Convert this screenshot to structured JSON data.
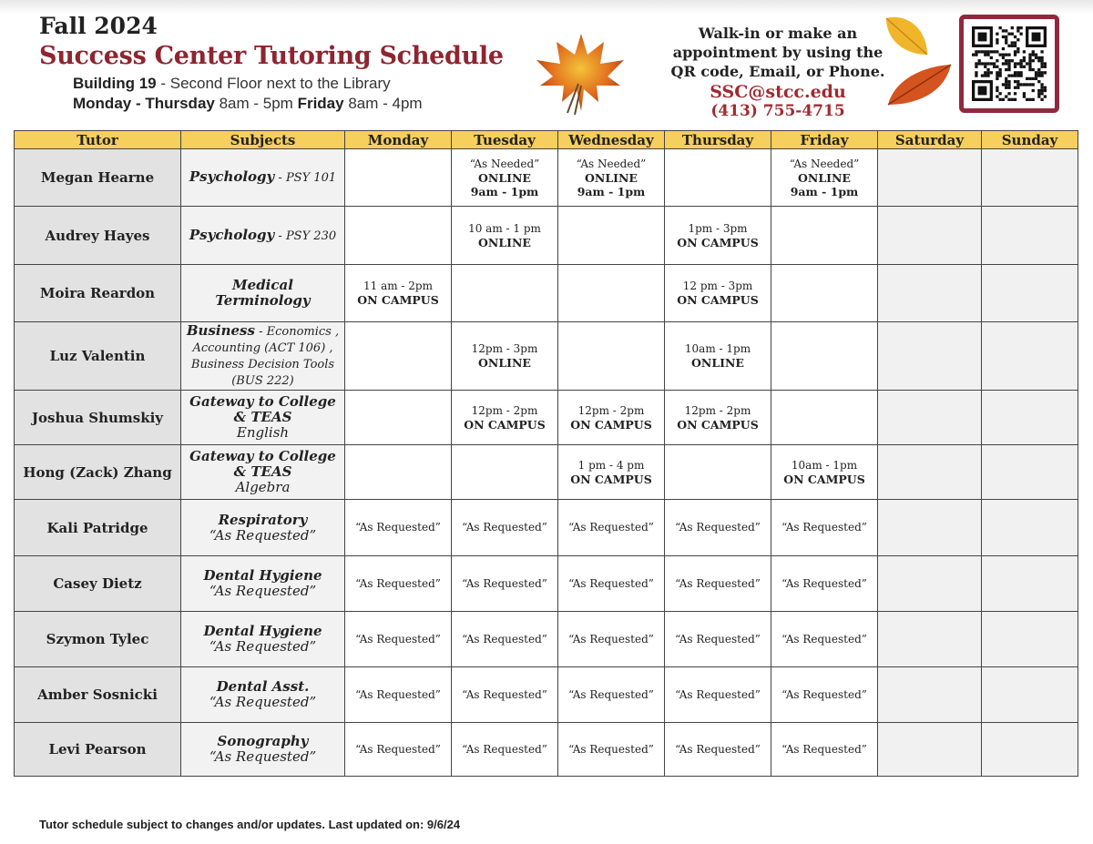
{
  "header": {
    "term": "Fall 2024",
    "title": "Success Center Tutoring Schedule",
    "location_bold": "Building 19",
    "location_rest": " - Second Floor next to the Library",
    "hours_weekday_bold": "Monday - Thursday",
    "hours_weekday": " 8am - 5pm ",
    "hours_friday_bold": "Friday",
    "hours_friday": " 8am - 4pm"
  },
  "contact": {
    "line1": "Walk-in or make an",
    "line2": "appointment by using the",
    "line3": "QR code, Email, or Phone.",
    "email": "SSC@stcc.edu",
    "phone": "(413) 755-4715"
  },
  "colors": {
    "title": "#8e2530",
    "header_row": "#f7cf5c",
    "qr_frame": "#8f2a3d"
  },
  "table": {
    "columns": [
      "Tutor",
      "Subjects",
      "Monday",
      "Tuesday",
      "Wednesday",
      "Thursday",
      "Friday",
      "Saturday",
      "Sunday"
    ],
    "rows": [
      {
        "tutor": "Megan Hearne",
        "subject": {
          "main": "Psychology",
          "detail": " - PSY 101",
          "inline": true
        },
        "days": [
          null,
          {
            "note": "“As Needed”",
            "mode": "ONLINE",
            "time": "9am - 1pm"
          },
          {
            "note": "“As Needed”",
            "mode": "ONLINE",
            "time": "9am - 1pm"
          },
          null,
          {
            "note": "“As Needed”",
            "mode": "ONLINE",
            "time": "9am - 1pm"
          },
          null,
          null
        ]
      },
      {
        "tutor": "Audrey Hayes",
        "subject": {
          "main": "Psychology",
          "detail": " - PSY 230",
          "inline": true
        },
        "days": [
          null,
          {
            "time": "10 am - 1 pm",
            "mode": "ONLINE"
          },
          null,
          {
            "time": "1pm - 3pm",
            "mode": "ON CAMPUS"
          },
          null,
          null,
          null
        ]
      },
      {
        "tutor": "Moira Reardon",
        "subject": {
          "main": "Medical Terminology",
          "detail": "",
          "inline": true
        },
        "days": [
          {
            "time": "11 am - 2pm",
            "mode": "ON CAMPUS"
          },
          null,
          null,
          {
            "time": "12 pm - 3pm",
            "mode": "ON CAMPUS"
          },
          null,
          null,
          null
        ]
      },
      {
        "tutor": "Luz Valentin",
        "subject": {
          "main": "Business",
          "detail": " - Economics , Accounting (ACT 106) , Business Decision Tools (BUS 222)",
          "inline": true
        },
        "days": [
          null,
          {
            "time": "12pm - 3pm",
            "mode": "ONLINE"
          },
          null,
          {
            "time": "10am - 1pm",
            "mode": "ONLINE"
          },
          null,
          null,
          null
        ]
      },
      {
        "tutor": "Joshua Shumskiy",
        "subject": {
          "main": "Gateway to College & TEAS",
          "detail": "English",
          "inline": false
        },
        "days": [
          null,
          {
            "time": "12pm - 2pm",
            "mode": "ON CAMPUS"
          },
          {
            "time": "12pm - 2pm",
            "mode": "ON CAMPUS"
          },
          {
            "time": "12pm - 2pm",
            "mode": "ON CAMPUS"
          },
          null,
          null,
          null
        ]
      },
      {
        "tutor": "Hong (Zack) Zhang",
        "subject": {
          "main": "Gateway to College & TEAS",
          "detail": "Algebra",
          "inline": false
        },
        "days": [
          null,
          null,
          {
            "time": "1 pm - 4 pm",
            "mode": "ON CAMPUS"
          },
          null,
          {
            "time": "10am - 1pm",
            "mode": "ON CAMPUS"
          },
          null,
          null
        ]
      },
      {
        "tutor": "Kali Patridge",
        "subject": {
          "main": "Respiratory",
          "detail": "“As Requested”",
          "inline": false
        },
        "days": [
          {
            "time": "“As Requested”"
          },
          {
            "time": "“As Requested”"
          },
          {
            "time": "“As Requested”"
          },
          {
            "time": "“As Requested”"
          },
          {
            "time": "“As Requested”"
          },
          null,
          null
        ]
      },
      {
        "tutor": "Casey Dietz",
        "subject": {
          "main": "Dental Hygiene",
          "detail": "“As Requested”",
          "inline": false
        },
        "days": [
          {
            "time": "“As Requested”"
          },
          {
            "time": "“As Requested”"
          },
          {
            "time": "“As Requested”"
          },
          {
            "time": "“As Requested”"
          },
          {
            "time": "“As Requested”"
          },
          null,
          null
        ]
      },
      {
        "tutor": "Szymon Tylec",
        "subject": {
          "main": "Dental Hygiene",
          "detail": "“As Requested”",
          "inline": false
        },
        "days": [
          {
            "time": "“As Requested”"
          },
          {
            "time": "“As Requested”"
          },
          {
            "time": "“As Requested”"
          },
          {
            "time": "“As Requested”"
          },
          {
            "time": "“As Requested”"
          },
          null,
          null
        ]
      },
      {
        "tutor": "Amber Sosnicki",
        "subject": {
          "main": "Dental Asst.",
          "detail": "“As Requested”",
          "inline": false
        },
        "days": [
          {
            "time": "“As Requested”"
          },
          {
            "time": "“As Requested”"
          },
          {
            "time": "“As Requested”"
          },
          {
            "time": "“As Requested”"
          },
          {
            "time": "“As Requested”"
          },
          null,
          null
        ]
      },
      {
        "tutor": "Levi Pearson",
        "subject": {
          "main": "Sonography",
          "detail": "“As Requested”",
          "inline": false
        },
        "days": [
          {
            "time": "“As Requested”"
          },
          {
            "time": "“As Requested”"
          },
          {
            "time": "“As Requested”"
          },
          {
            "time": "“As Requested”"
          },
          {
            "time": "“As Requested”"
          },
          null,
          null
        ]
      }
    ]
  },
  "footer": "Tutor schedule subject to changes and/or updates. Last updated on: 9/6/24"
}
